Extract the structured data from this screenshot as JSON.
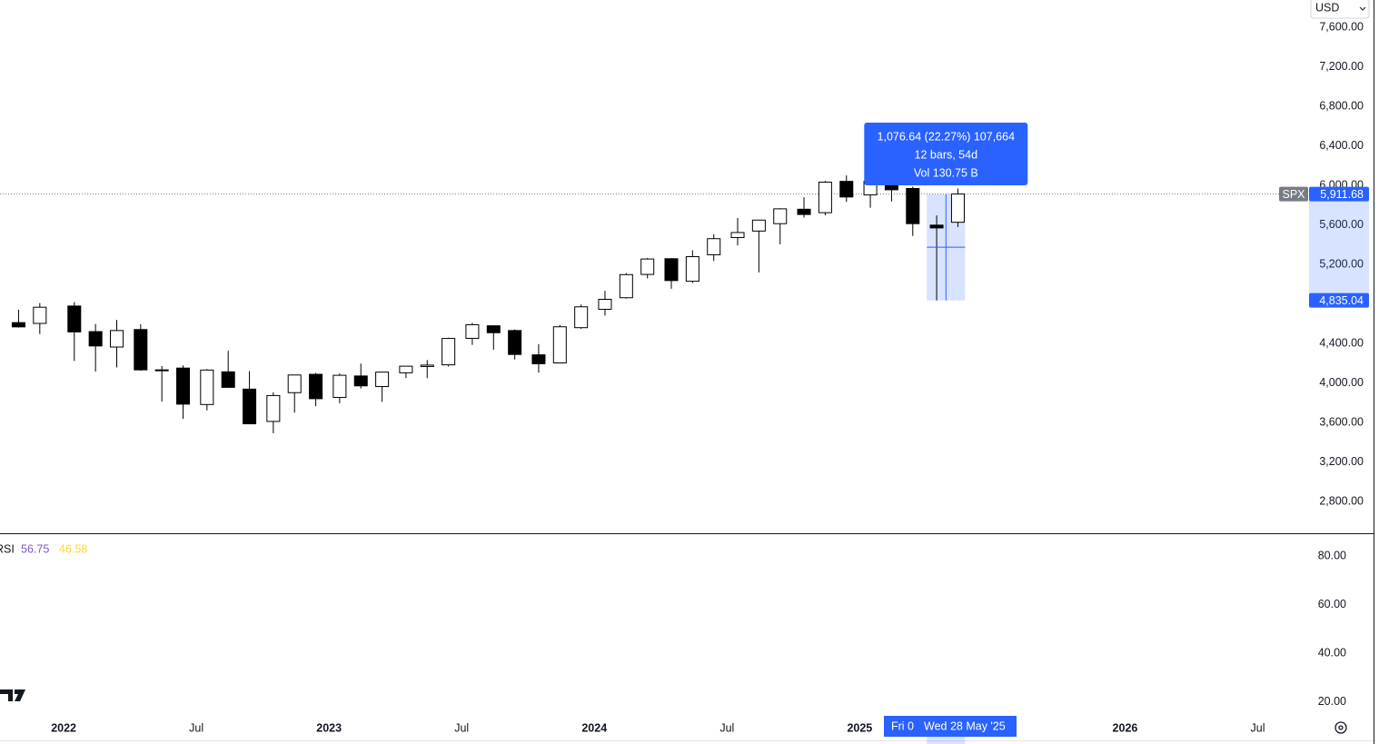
{
  "chart_data": {
    "type": "candlestick",
    "symbol": "SPX",
    "currency": "USD",
    "xlim": [
      2021.76,
      2026.69
    ],
    "xticks": [
      {
        "value": 2022,
        "label": "2022"
      },
      {
        "value": 2022.5,
        "label": "Jul"
      },
      {
        "value": 2023,
        "label": "2023"
      },
      {
        "value": 2023.5,
        "label": "Jul"
      },
      {
        "value": 2024,
        "label": "2024"
      },
      {
        "value": 2024.5,
        "label": "Jul"
      },
      {
        "value": 2025,
        "label": "2025"
      },
      {
        "value": 2026,
        "label": "2026"
      },
      {
        "value": 2026.5,
        "label": "Jul"
      }
    ],
    "ylim": [
      2478,
      7876
    ],
    "yticks": [
      {
        "value": 2800,
        "label": "2,800.00"
      },
      {
        "value": 3200,
        "label": "3,200.00"
      },
      {
        "value": 3600,
        "label": "3,600.00"
      },
      {
        "value": 4000,
        "label": "4,000.00"
      },
      {
        "value": 4400,
        "label": "4,400.00"
      },
      {
        "value": 5200,
        "label": "5,200.00"
      },
      {
        "value": 5600,
        "label": "5,600.00"
      },
      {
        "value": 6000,
        "label": "6,000.00"
      },
      {
        "value": 6400,
        "label": "6,400.00"
      },
      {
        "value": 6800,
        "label": "6,800.00"
      },
      {
        "value": 7200,
        "label": "7,200.00"
      },
      {
        "value": 7600,
        "label": "7,600.00"
      }
    ],
    "x": [
      2021.83,
      2021.91,
      2022.04,
      2022.12,
      2022.2,
      2022.29,
      2022.37,
      2022.45,
      2022.54,
      2022.62,
      2022.7,
      2022.79,
      2022.87,
      2022.95,
      2023.04,
      2023.12,
      2023.2,
      2023.29,
      2023.37,
      2023.45,
      2023.54,
      2023.62,
      2023.7,
      2023.79,
      2023.87,
      2023.95,
      2024.04,
      2024.12,
      2024.2,
      2024.29,
      2024.37,
      2024.45,
      2024.54,
      2024.62,
      2024.7,
      2024.79,
      2024.87,
      2024.95,
      2025.04,
      2025.12,
      2025.2,
      2025.29,
      2025.37
    ],
    "open": [
      4610,
      4602,
      4778,
      4519,
      4363,
      4540,
      4130,
      4150,
      3781,
      4112,
      3937,
      3610,
      3901,
      4087,
      3853,
      4070,
      3963,
      4102,
      4166,
      4183,
      4451,
      4578,
      4530,
      4284,
      4202,
      4559,
      4745,
      4862,
      5098,
      5257,
      5029,
      5297,
      5471,
      5537,
      5612,
      5758,
      5723,
      6040,
      5903,
      6041,
      5968,
      5597,
      5626
    ],
    "high": [
      4740,
      4808,
      4818,
      4596,
      4637,
      4593,
      4170,
      4177,
      4140,
      4325,
      4119,
      3905,
      4080,
      4101,
      4095,
      4195,
      4110,
      4170,
      4231,
      4458,
      4607,
      4584,
      4541,
      4393,
      4587,
      4793,
      4932,
      5111,
      5265,
      5264,
      5342,
      5505,
      5670,
      5651,
      5768,
      5878,
      6044,
      6100,
      6128,
      6147,
      5987,
      5696,
      5968
    ],
    "low": [
      4560,
      4495,
      4222,
      4115,
      4157,
      4124,
      3811,
      3637,
      3721,
      3954,
      3584,
      3491,
      3699,
      3764,
      3794,
      3943,
      3808,
      4049,
      4048,
      4166,
      4385,
      4335,
      4238,
      4104,
      4197,
      4547,
      4682,
      4853,
      5057,
      4953,
      5011,
      5234,
      5391,
      5119,
      5403,
      5674,
      5696,
      5832,
      5773,
      5837,
      5488,
      4835,
      5578
    ],
    "close": [
      4567,
      4766,
      4516,
      4374,
      4530,
      4132,
      4132,
      3785,
      4130,
      3955,
      3586,
      3872,
      4080,
      3840,
      4077,
      3970,
      4109,
      4169,
      4180,
      4450,
      4589,
      4508,
      4288,
      4194,
      4568,
      4770,
      4846,
      5096,
      5254,
      5036,
      5278,
      5460,
      5522,
      5648,
      5762,
      5705,
      6032,
      5882,
      6041,
      5955,
      5612,
      5569,
      5912
    ],
    "last_price": {
      "value": 5911.68,
      "label": "5,911.68"
    },
    "measure": {
      "x": [
        2025.253,
        2025.397
      ],
      "low": {
        "value": 4835.04,
        "label": "4,835.04"
      },
      "lines": [
        "1,076.64 (22.27%) 107,664",
        "12 bars, 54d",
        "Vol 130.75 B"
      ]
    },
    "crosshair_labels": [
      "Fri 0",
      "Wed 28 May '25"
    ],
    "rsi": {
      "name": "RSI",
      "values": [
        56.75,
        46.58
      ],
      "value_labels": [
        "56.75",
        "46.58"
      ],
      "colors": [
        "#7e57c2",
        "#fdd835"
      ],
      "ylim": [
        13.64,
        89.35
      ],
      "yticks": [
        {
          "value": 20,
          "label": "20.00"
        },
        {
          "value": 40,
          "label": "40.00"
        },
        {
          "value": 60,
          "label": "60.00"
        },
        {
          "value": 80,
          "label": "80.00"
        }
      ]
    }
  }
}
